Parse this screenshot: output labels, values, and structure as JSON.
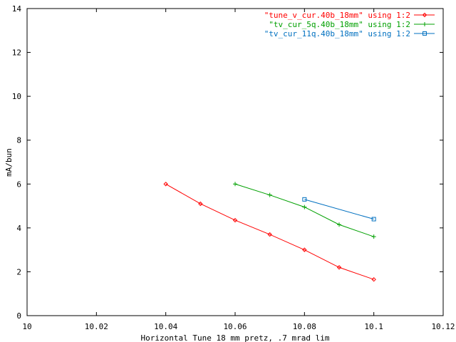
{
  "chart_data": {
    "type": "line",
    "title": "",
    "xlabel": "Horizontal Tune 18 mm pretz, .7 mrad lim",
    "ylabel": "mA/bun",
    "xlim": [
      10,
      10.12
    ],
    "ylim": [
      0,
      14
    ],
    "x_ticks": [
      "10",
      "10.02",
      "10.04",
      "10.06",
      "10.08",
      "10.1",
      "10.12"
    ],
    "y_ticks": [
      "0",
      "2",
      "4",
      "6",
      "8",
      "10",
      "12",
      "14"
    ],
    "grid": false,
    "legend_position": "top-right",
    "series": [
      {
        "name": "\"tune_v_cur.40b_18mm\" using 1:2",
        "color": "#ff0000",
        "marker": "diamond",
        "x": [
          10.04,
          10.05,
          10.06,
          10.07,
          10.08,
          10.09,
          10.1
        ],
        "y": [
          6.0,
          5.1,
          4.35,
          3.7,
          3.0,
          2.2,
          1.65
        ]
      },
      {
        "name": "\"tv_cur_5q.40b_18mm\" using 1:2",
        "color": "#00a000",
        "marker": "plus",
        "x": [
          10.06,
          10.07,
          10.08,
          10.09,
          10.1
        ],
        "y": [
          6.0,
          5.5,
          4.95,
          4.15,
          3.6
        ]
      },
      {
        "name": "\"tv_cur_11q.40b_18mm\" using 1:2",
        "color": "#0070c0",
        "marker": "square",
        "x": [
          10.08,
          10.1
        ],
        "y": [
          5.3,
          4.4
        ]
      }
    ]
  }
}
